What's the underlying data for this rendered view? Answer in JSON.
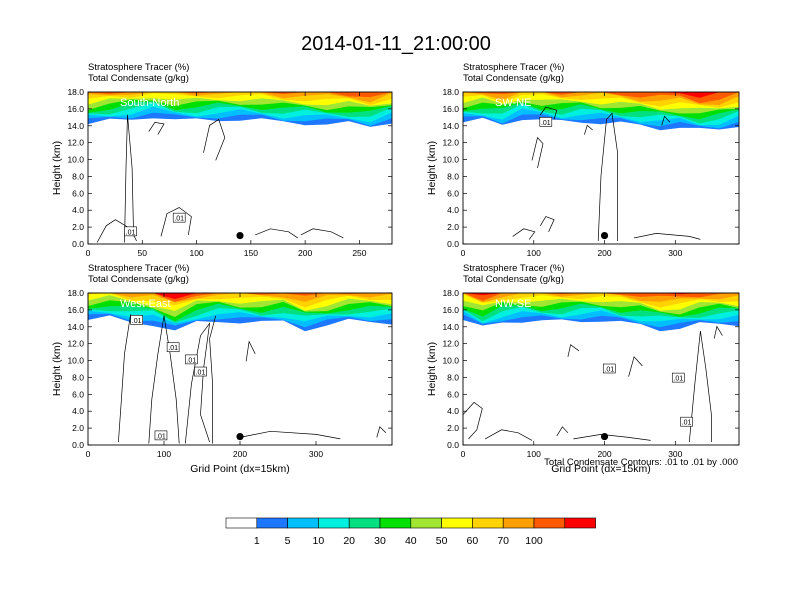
{
  "figure": {
    "title": "2014-01-11_21:00:00",
    "footnote": "Total Condensate Contours: .01 to .01 by .000"
  },
  "colors": {
    "levels": [
      "#ffffff",
      "#1e78ff",
      "#00bfff",
      "#00f0e0",
      "#00e080",
      "#00e000",
      "#a0e632",
      "#ffff00",
      "#ffd200",
      "#ffa000",
      "#ff5a00",
      "#ff0000"
    ],
    "marker": "#000000"
  },
  "colorbar": {
    "labels": [
      "1",
      "5",
      "10",
      "20",
      "30",
      "40",
      "50",
      "60",
      "70",
      "100"
    ]
  },
  "chart_data": [
    {
      "type": "heatmap",
      "panel_name": "South-North",
      "title_line1": "Stratosphere Tracer   (%)",
      "title_line2": "Total Condensate   (g/kg)",
      "ylabel": "Height (km)",
      "xlabel": "",
      "xlim": [
        0,
        280
      ],
      "ylim": [
        0,
        18
      ],
      "xticks": [
        "0",
        "50",
        "100",
        "150",
        "200",
        "250"
      ],
      "yticks": [
        "0.0",
        "2.0",
        "4.0",
        "6.0",
        "8.0",
        "10.0",
        "12.0",
        "14.0",
        "16.0",
        "18.0"
      ],
      "tracer_band_bottom_km": [
        14.2,
        14.5,
        14.8,
        15.2,
        14.6,
        14.6,
        14.8,
        14.8,
        14.6,
        14.4,
        14.4,
        14.2,
        14.2,
        13.9,
        14.6
      ],
      "marker_x": 140,
      "contour_labels": [
        ".01",
        ".01"
      ]
    },
    {
      "type": "heatmap",
      "panel_name": "SW-NE",
      "title_line1": "Stratosphere Tracer   (%)",
      "title_line2": "Total Condensate   (g/kg)",
      "ylabel": "Height (km)",
      "xlabel": "",
      "xlim": [
        0,
        390
      ],
      "ylim": [
        0,
        18
      ],
      "xticks": [
        "0",
        "100",
        "200",
        "300"
      ],
      "yticks": [
        "0.0",
        "2.0",
        "4.0",
        "6.0",
        "8.0",
        "10.0",
        "12.0",
        "14.0",
        "16.0",
        "18.0"
      ],
      "tracer_band_bottom_km": [
        14.4,
        14.6,
        14.2,
        15.0,
        14.6,
        14.4,
        14.6,
        14.4,
        14.2,
        14.0,
        13.8,
        13.8,
        13.4,
        13.6,
        14.2
      ],
      "marker_x": 200,
      "contour_labels": [
        ".01"
      ]
    },
    {
      "type": "heatmap",
      "panel_name": "West-East",
      "title_line1": "Stratosphere Tracer   (%)",
      "title_line2": "Total Condensate   (g/kg)",
      "ylabel": "Height (km)",
      "xlabel": "Grid Point (dx=15km)",
      "xlim": [
        0,
        400
      ],
      "ylim": [
        0,
        18
      ],
      "xticks": [
        "0",
        "100",
        "200",
        "300"
      ],
      "yticks": [
        "0.0",
        "2.0",
        "4.0",
        "6.0",
        "8.0",
        "10.0",
        "12.0",
        "14.0",
        "16.0",
        "18.0"
      ],
      "tracer_band_bottom_km": [
        14.8,
        15.0,
        14.6,
        14.4,
        13.4,
        14.4,
        14.8,
        14.6,
        14.4,
        14.6,
        13.8,
        14.2,
        14.6,
        14.6,
        14.6
      ],
      "marker_x": 200,
      "contour_labels": [
        ".01",
        ".01",
        ".01",
        ".01",
        ".01"
      ]
    },
    {
      "type": "heatmap",
      "panel_name": "NW-SE",
      "title_line1": "Stratosphere Tracer   (%)",
      "title_line2": "Total Condensate   (g/kg)",
      "ylabel": "Height (km)",
      "xlabel": "Grid Point (dx=15km)",
      "xlim": [
        0,
        390
      ],
      "ylim": [
        0,
        18
      ],
      "xticks": [
        "0",
        "100",
        "200",
        "300"
      ],
      "yticks": [
        "0.0",
        "2.0",
        "4.0",
        "6.0",
        "8.0",
        "10.0",
        "12.0",
        "14.0",
        "16.0",
        "18.0"
      ],
      "tracer_band_bottom_km": [
        14.8,
        13.8,
        14.6,
        14.8,
        14.6,
        14.6,
        14.8,
        14.8,
        14.4,
        14.2,
        13.8,
        13.8,
        14.2,
        14.4,
        14.4
      ],
      "marker_x": 200,
      "contour_labels": [
        ".01",
        ".01",
        ".01"
      ]
    }
  ]
}
